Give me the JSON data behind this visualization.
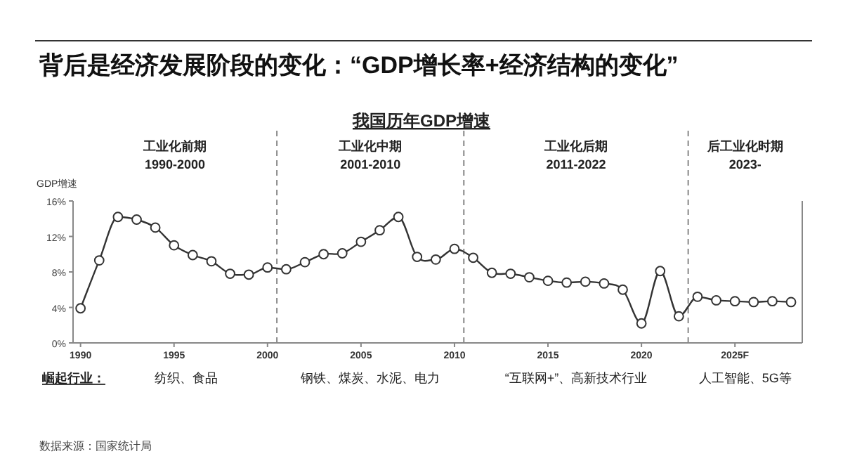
{
  "chart_data": {
    "type": "line",
    "title": "背后是经济发展阶段的变化：“GDP增长率+经济结构的变化”",
    "subtitle": "我国历年GDP增速",
    "ylabel": "GDP增速",
    "x": [
      1990,
      1991,
      1992,
      1993,
      1994,
      1995,
      1996,
      1997,
      1998,
      1999,
      2000,
      2001,
      2002,
      2003,
      2004,
      2005,
      2006,
      2007,
      2008,
      2009,
      2010,
      2011,
      2012,
      2013,
      2014,
      2015,
      2016,
      2017,
      2018,
      2019,
      2020,
      2021,
      2022,
      2023,
      2024,
      2025,
      2026,
      2027,
      2028
    ],
    "series": [
      {
        "color": "#333333",
        "values": [
          3.9,
          9.3,
          14.2,
          13.9,
          13.0,
          11.0,
          9.9,
          9.2,
          7.8,
          7.7,
          8.5,
          8.3,
          9.1,
          10.0,
          10.1,
          11.4,
          12.7,
          14.2,
          9.7,
          9.4,
          10.6,
          9.6,
          7.9,
          7.8,
          7.4,
          7.0,
          6.8,
          6.9,
          6.7,
          6.0,
          2.2,
          8.1,
          3.0,
          5.2,
          4.8,
          4.7,
          4.6,
          4.7,
          4.6
        ]
      }
    ],
    "xlim": [
      1989.6,
      2028.6
    ],
    "xticks": [
      1990,
      1995,
      2000,
      2005,
      2010,
      2015,
      2020,
      {
        "value": 2025,
        "label": "2025F"
      }
    ],
    "ylim": [
      0,
      16
    ],
    "yticks": [
      {
        "value": 0,
        "label": "0%"
      },
      {
        "value": 4,
        "label": "4%"
      },
      {
        "value": 8,
        "label": "8%"
      },
      {
        "value": 12,
        "label": "12%"
      },
      {
        "value": 16,
        "label": "16%"
      }
    ],
    "ref_lines": [
      {
        "axis": "x",
        "value": 2000.5,
        "color": "#888888",
        "line_style": "dashed"
      },
      {
        "axis": "x",
        "value": 2010.5,
        "color": "#888888",
        "line_style": "dashed"
      },
      {
        "axis": "x",
        "value": 2022.5,
        "color": "#888888",
        "line_style": "dashed"
      }
    ],
    "marker": "circle",
    "line_style": "solid",
    "grid": false,
    "annotations": [
      "工业化前期",
      "1990-2000",
      "工业化中期",
      "2001-2010",
      "工业化后期",
      "2011-2022",
      "后工业化时期",
      "2023-",
      "崛起行业：",
      "纺织、食品",
      "钢铁、煤炭、水泥、电力",
      "“互联网+”、高新技术行业",
      "人工智能、5G等",
      "数据来源：国家统计局"
    ]
  }
}
